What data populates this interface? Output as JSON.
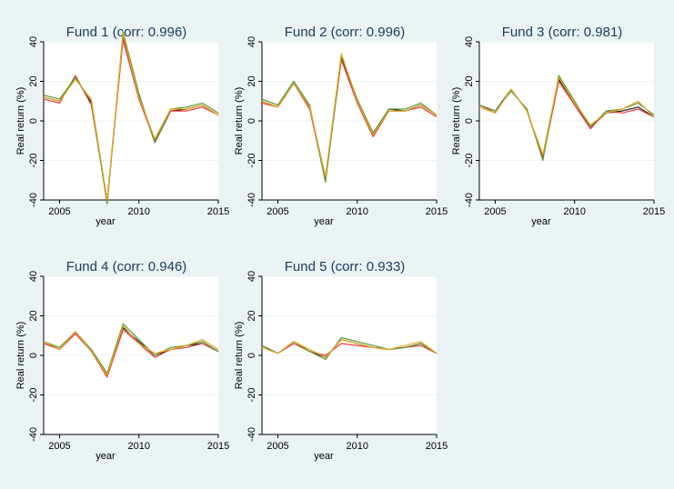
{
  "colors": {
    "outer_background": "#eaf2f3",
    "plot_background": "#ffffff",
    "series": [
      "#1a1a1a",
      "#e63c3c",
      "#5a9a3c",
      "#e8a820"
    ]
  },
  "chart_data": [
    {
      "type": "line",
      "title": "Fund 1 (corr: 0.996)",
      "xlabel": "year",
      "ylabel": "Real return (%)",
      "xlim": [
        2004,
        2015
      ],
      "ylim": [
        -40,
        40
      ],
      "xticks": [
        "2005",
        "2010",
        "2015"
      ],
      "yticks": [
        "-40",
        "-20",
        "0",
        "20",
        "40"
      ],
      "grid": true,
      "x": [
        2004,
        2005,
        2006,
        2007,
        2008,
        2009,
        2010,
        2011,
        2012,
        2013,
        2014,
        2015
      ],
      "series": [
        {
          "values": [
            12,
            10,
            22,
            9,
            -41,
            43,
            13,
            -11,
            5,
            6,
            8,
            3
          ]
        },
        {
          "values": [
            11,
            9,
            23,
            8,
            -40,
            41,
            11,
            -10,
            5,
            5,
            7,
            3
          ]
        },
        {
          "values": [
            13,
            11,
            22,
            10,
            -42,
            45,
            14,
            -11,
            6,
            7,
            9,
            4
          ]
        },
        {
          "values": [
            12,
            10,
            21,
            11,
            -40,
            44,
            12,
            -9,
            6,
            6,
            8,
            3
          ]
        }
      ]
    },
    {
      "type": "line",
      "title": "Fund 2 (corr: 0.996)",
      "xlabel": "year",
      "ylabel": "Real return (%)",
      "xlim": [
        2004,
        2015
      ],
      "ylim": [
        -40,
        40
      ],
      "xticks": [
        "2005",
        "2010",
        "2015"
      ],
      "yticks": [
        "-40",
        "-20",
        "0",
        "20",
        "40"
      ],
      "grid": true,
      "x": [
        2004,
        2005,
        2006,
        2007,
        2008,
        2009,
        2010,
        2011,
        2012,
        2013,
        2014,
        2015
      ],
      "series": [
        {
          "values": [
            10,
            7,
            19,
            7,
            -29,
            32,
            10,
            -7,
            6,
            5,
            8,
            3
          ]
        },
        {
          "values": [
            9,
            7,
            19,
            6,
            -30,
            31,
            9,
            -8,
            5,
            5,
            7,
            2
          ]
        },
        {
          "values": [
            11,
            8,
            20,
            8,
            -31,
            33,
            11,
            -6,
            6,
            6,
            9,
            3
          ]
        },
        {
          "values": [
            10,
            7,
            19,
            7,
            -28,
            34,
            10,
            -7,
            5,
            5,
            8,
            3
          ]
        }
      ]
    },
    {
      "type": "line",
      "title": "Fund 3 (corr: 0.981)",
      "xlabel": "year",
      "ylabel": "Real return (%)",
      "xlim": [
        2004,
        2015
      ],
      "ylim": [
        -40,
        40
      ],
      "xticks": [
        "2005",
        "2010",
        "2015"
      ],
      "yticks": [
        "-40",
        "-20",
        "0",
        "20",
        "40"
      ],
      "grid": true,
      "x": [
        2004,
        2005,
        2006,
        2007,
        2008,
        2009,
        2010,
        2011,
        2012,
        2013,
        2014,
        2015
      ],
      "series": [
        {
          "values": [
            8,
            5,
            16,
            5,
            -18,
            21,
            9,
            -3,
            4,
            5,
            7,
            2
          ]
        },
        {
          "values": [
            8,
            4,
            16,
            5,
            -19,
            20,
            8,
            -4,
            5,
            4,
            6,
            2
          ]
        },
        {
          "values": [
            8,
            5,
            15,
            6,
            -20,
            23,
            10,
            -3,
            5,
            6,
            9,
            3
          ]
        },
        {
          "values": [
            7,
            4,
            16,
            5,
            -17,
            22,
            9,
            -2,
            4,
            6,
            10,
            2
          ]
        }
      ]
    },
    {
      "type": "line",
      "title": "Fund 4 (corr: 0.946)",
      "xlabel": "year",
      "ylabel": "Real return (%)",
      "xlim": [
        2004,
        2015
      ],
      "ylim": [
        -40,
        40
      ],
      "xticks": [
        "2005",
        "2010",
        "2015"
      ],
      "yticks": [
        "-40",
        "-20",
        "0",
        "20",
        "40"
      ],
      "grid": true,
      "x": [
        2004,
        2005,
        2006,
        2007,
        2008,
        2009,
        2010,
        2011,
        2012,
        2013,
        2014,
        2015
      ],
      "series": [
        {
          "values": [
            7,
            3,
            12,
            2,
            -10,
            14,
            7,
            0,
            3,
            5,
            6,
            2
          ]
        },
        {
          "values": [
            6,
            3,
            11,
            2,
            -11,
            13,
            6,
            -1,
            3,
            4,
            6,
            2
          ]
        },
        {
          "values": [
            7,
            4,
            12,
            3,
            -9,
            16,
            8,
            0,
            4,
            5,
            7,
            2
          ]
        },
        {
          "values": [
            7,
            3,
            12,
            2,
            -10,
            15,
            6,
            1,
            3,
            5,
            8,
            3
          ]
        }
      ]
    },
    {
      "type": "line",
      "title": "Fund 5 (corr: 0.933)",
      "xlabel": "year",
      "ylabel": "Real return (%)",
      "xlim": [
        2004,
        2015
      ],
      "ylim": [
        -40,
        40
      ],
      "xticks": [
        "2005",
        "2010",
        "2015"
      ],
      "yticks": [
        "-40",
        "-20",
        "0",
        "20",
        "40"
      ],
      "grid": true,
      "x": [
        2004,
        2005,
        2006,
        2007,
        2008,
        2009,
        2010,
        2011,
        2012,
        2013,
        2014,
        2015
      ],
      "series": [
        {
          "values": [
            5,
            1,
            7,
            2,
            -1,
            8,
            6,
            4,
            3,
            4,
            6,
            1
          ]
        },
        {
          "values": [
            5,
            1,
            6,
            2,
            0,
            6,
            5,
            4,
            3,
            4,
            5,
            1
          ]
        },
        {
          "values": [
            5,
            1,
            7,
            2,
            -2,
            9,
            7,
            5,
            3,
            4,
            6,
            1
          ]
        },
        {
          "values": [
            4,
            1,
            7,
            3,
            -1,
            8,
            6,
            4,
            3,
            5,
            7,
            1
          ]
        }
      ]
    }
  ]
}
